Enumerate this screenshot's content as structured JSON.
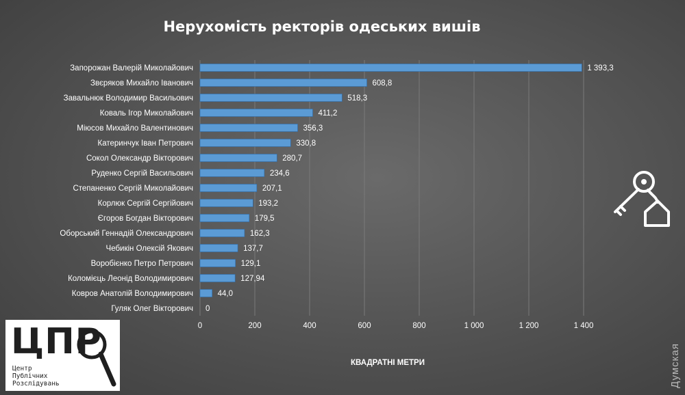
{
  "chart_data": {
    "type": "bar",
    "orientation": "horizontal",
    "title": "Нерухомість ректорів одеських вишів",
    "xlabel": "КВАДРАТНІ МЕТРИ",
    "ylabel": "",
    "xlim": [
      0,
      1400
    ],
    "ticks": [
      0,
      200,
      400,
      600,
      800,
      1000,
      1200,
      1400
    ],
    "tick_labels": [
      "0",
      "200",
      "400",
      "600",
      "800",
      "1 000",
      "1 200",
      "1 400"
    ],
    "grid": true,
    "bar_color": "#5b9bd5",
    "categories": [
      "Запорожан Валерій Миколайович",
      "Звєряков Михайло Іванович",
      "Завальнюк Володимир Васильович",
      "Коваль Ігор Миколайович",
      "Міюсов Михайло Валентинович",
      "Катеринчук Іван Петрович",
      "Сокол Олександр Вікторович",
      "Руденко Сергій Васильович",
      "Степаненко Сергій Миколайович",
      "Корлюк Сергій Сергійович",
      "Єгоров Богдан Вікторович",
      "Оборський Геннадій Олександрович",
      "Чебикін Олексій Якович",
      "Воробієнко Петро Петрович",
      "Коломієць Леонід Володимирович",
      "Ковров Анатолій Володимирович",
      "Гуляк Олег Вікторович"
    ],
    "values": [
      1393.3,
      608.8,
      518.3,
      411.2,
      356.3,
      330.8,
      280.7,
      234.6,
      207.1,
      193.2,
      179.5,
      162.3,
      137.7,
      129.1,
      127.94,
      44.0,
      0
    ],
    "value_labels": [
      "1 393,3",
      "608,8",
      "518,3",
      "411,2",
      "356,3",
      "330,8",
      "280,7",
      "234,6",
      "207,1",
      "193,2",
      "179,5",
      "162,3",
      "137,7",
      "129,1",
      "127,94",
      "44,0",
      "0"
    ]
  },
  "logo": {
    "letters": "ЦПР",
    "subtitle": "Центр\nПублічних\nРозслідувань"
  },
  "watermark": "Думская",
  "icons": [
    "keys-house-icon",
    "magnifier-icon"
  ]
}
